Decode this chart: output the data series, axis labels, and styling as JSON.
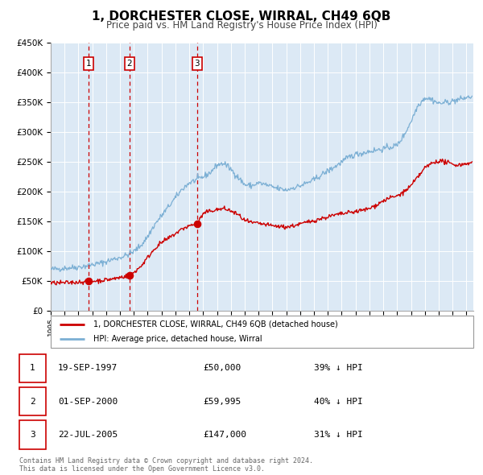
{
  "title": "1, DORCHESTER CLOSE, WIRRAL, CH49 6QB",
  "subtitle": "Price paid vs. HM Land Registry's House Price Index (HPI)",
  "title_fontsize": 11,
  "subtitle_fontsize": 8.5,
  "sale_dates": [
    1997.72,
    2000.67,
    2005.56
  ],
  "sale_prices": [
    50000,
    59995,
    147000
  ],
  "sale_labels": [
    "1",
    "2",
    "3"
  ],
  "vline_dates": [
    1997.72,
    2000.67,
    2005.56
  ],
  "red_line_color": "#cc0000",
  "blue_line_color": "#7bafd4",
  "dot_color": "#cc0000",
  "vline_color": "#cc0000",
  "label_box_color": "#cc0000",
  "plot_bg": "#dce9f5",
  "grid_color": "#ffffff",
  "ylim": [
    0,
    450000
  ],
  "xlim_start": 1995.0,
  "xlim_end": 2025.5,
  "legend_entry1": "1, DORCHESTER CLOSE, WIRRAL, CH49 6QB (detached house)",
  "legend_entry2": "HPI: Average price, detached house, Wirral",
  "table_rows": [
    [
      "1",
      "19-SEP-1997",
      "£50,000",
      "39% ↓ HPI"
    ],
    [
      "2",
      "01-SEP-2000",
      "£59,995",
      "40% ↓ HPI"
    ],
    [
      "3",
      "22-JUL-2005",
      "£147,000",
      "31% ↓ HPI"
    ]
  ],
  "footer_text": "Contains HM Land Registry data © Crown copyright and database right 2024.\nThis data is licensed under the Open Government Licence v3.0.",
  "ytick_labels": [
    "£0",
    "£50K",
    "£100K",
    "£150K",
    "£200K",
    "£250K",
    "£300K",
    "£350K",
    "£400K",
    "£450K"
  ],
  "ytick_values": [
    0,
    50000,
    100000,
    150000,
    200000,
    250000,
    300000,
    350000,
    400000,
    450000
  ]
}
